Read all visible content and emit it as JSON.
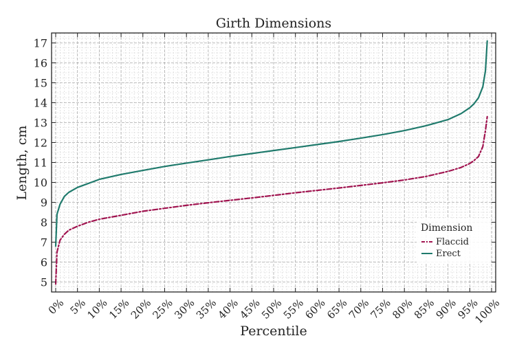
{
  "chart_data": {
    "type": "line",
    "title": "Girth Dimensions",
    "xlabel": "Percentile",
    "ylabel": "Length, cm",
    "xlim": [
      0,
      100
    ],
    "ylim": [
      4.5,
      17.5
    ],
    "x_tick_labels": [
      "0%",
      "5%",
      "10%",
      "15%",
      "20%",
      "25%",
      "30%",
      "35%",
      "40%",
      "45%",
      "50%",
      "55%",
      "60%",
      "65%",
      "70%",
      "75%",
      "80%",
      "85%",
      "90%",
      "95%",
      "100%"
    ],
    "y_ticks": [
      5,
      6,
      7,
      8,
      9,
      10,
      11,
      12,
      13,
      14,
      15,
      16,
      17
    ],
    "grid": true,
    "legend": {
      "title": "Dimension",
      "position": "bottom-right"
    },
    "x": [
      0,
      0.3,
      1,
      2,
      3,
      5,
      7.5,
      10,
      15,
      20,
      25,
      30,
      35,
      40,
      45,
      50,
      55,
      60,
      65,
      70,
      75,
      80,
      85,
      90,
      93,
      95,
      96,
      97,
      98,
      98.6,
      99
    ],
    "series": [
      {
        "name": "Flaccid",
        "color": "#a0134f",
        "dash": "dashdot",
        "values": [
          4.9,
          6.5,
          7.1,
          7.4,
          7.6,
          7.8,
          8.0,
          8.15,
          8.35,
          8.55,
          8.7,
          8.85,
          8.98,
          9.1,
          9.22,
          9.35,
          9.48,
          9.6,
          9.72,
          9.85,
          9.98,
          10.12,
          10.3,
          10.55,
          10.75,
          10.95,
          11.1,
          11.3,
          11.8,
          12.6,
          13.3
        ]
      },
      {
        "name": "Erect",
        "color": "#1f7a6c",
        "dash": "solid",
        "values": [
          6.8,
          8.4,
          8.9,
          9.3,
          9.5,
          9.75,
          9.95,
          10.15,
          10.4,
          10.6,
          10.8,
          10.97,
          11.13,
          11.3,
          11.45,
          11.6,
          11.75,
          11.9,
          12.05,
          12.22,
          12.4,
          12.6,
          12.85,
          13.15,
          13.45,
          13.75,
          13.95,
          14.25,
          14.8,
          15.6,
          17.1
        ]
      }
    ]
  }
}
